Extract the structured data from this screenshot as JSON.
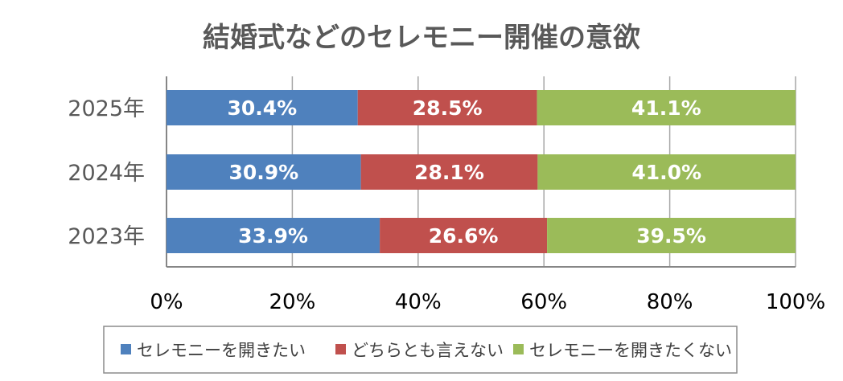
{
  "chart_data": {
    "type": "bar",
    "orientation": "horizontal",
    "stacked": true,
    "title": "結婚式などのセレモニー開催の意欲",
    "categories": [
      "2025年",
      "2024年",
      "2023年"
    ],
    "series": [
      {
        "name": "セレモニーを開きたい",
        "color": "#4F81BD",
        "values": [
          30.4,
          30.9,
          33.9
        ],
        "labels": [
          "30.4%",
          "30.9%",
          "33.9%"
        ]
      },
      {
        "name": "どちらとも言えない",
        "color": "#C0504D",
        "values": [
          28.5,
          28.1,
          26.6
        ],
        "labels": [
          "28.5%",
          "28.1%",
          "26.6%"
        ]
      },
      {
        "name": "セレモニーを開きたくない",
        "color": "#9BBB59",
        "values": [
          41.1,
          41.0,
          39.5
        ],
        "labels": [
          "41.1%",
          "41.0%",
          "39.5%"
        ]
      }
    ],
    "xlim": [
      0,
      100
    ],
    "xticks": [
      "0%",
      "20%",
      "40%",
      "60%",
      "80%",
      "100%"
    ],
    "grid": true,
    "legend_position": "bottom"
  }
}
